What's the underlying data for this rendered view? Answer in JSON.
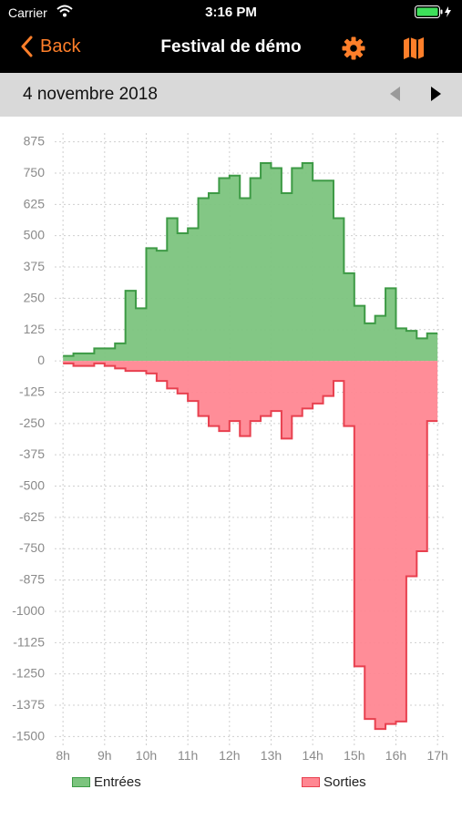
{
  "status": {
    "carrier": "Carrier",
    "time": "3:16 PM"
  },
  "nav": {
    "back_label": "Back",
    "title": "Festival de démo"
  },
  "datebar": {
    "date": "4 novembre 2018"
  },
  "colors": {
    "accent": "#ff7f2a",
    "green_fill": "#7cc47e",
    "green_line": "#3d9a45",
    "red_fill": "#ff8792",
    "red_line": "#e8404f"
  },
  "icons": {
    "back": "chevron-left-icon",
    "settings": "gear-icon",
    "map": "map-icon",
    "prev": "triangle-left-icon",
    "next": "triangle-right-icon"
  },
  "chart_data": {
    "type": "area",
    "step": true,
    "x_start": 8,
    "x_step": 0.25,
    "x_ticks": [
      8,
      9,
      10,
      11,
      12,
      13,
      14,
      15,
      16,
      17
    ],
    "x_tick_labels": [
      "8h",
      "9h",
      "10h",
      "11h",
      "12h",
      "13h",
      "14h",
      "15h",
      "16h",
      "17h"
    ],
    "y_ticks": [
      875,
      750,
      625,
      500,
      375,
      250,
      125,
      0,
      -125,
      -250,
      -375,
      -500,
      -625,
      -750,
      -875,
      -1000,
      -1125,
      -1250,
      -1375,
      -1500
    ],
    "y_tick_labels": [
      "875",
      "750",
      "625",
      "500",
      "375",
      "250",
      "125",
      "0",
      "-125",
      "-250",
      "-375",
      "-500",
      "-625",
      "-750",
      "-875",
      "-1000",
      "-1125",
      "-1250",
      "-1375",
      "-1500"
    ],
    "ylim": [
      -1535,
      910
    ],
    "xlim": [
      7.8,
      17.15
    ],
    "grid": true,
    "legend_position": "bottom",
    "series": [
      {
        "name": "Entrées",
        "values": [
          20,
          30,
          30,
          50,
          50,
          70,
          280,
          210,
          450,
          440,
          570,
          510,
          530,
          650,
          670,
          730,
          740,
          650,
          730,
          790,
          770,
          670,
          770,
          790,
          720,
          720,
          570,
          350,
          220,
          150,
          180,
          290,
          130,
          120,
          90,
          110
        ]
      },
      {
        "name": "Sorties",
        "values": [
          -10,
          -20,
          -20,
          -10,
          -20,
          -30,
          -40,
          -40,
          -50,
          -80,
          -110,
          -130,
          -160,
          -220,
          -260,
          -280,
          -240,
          -300,
          -240,
          -220,
          -200,
          -310,
          -220,
          -190,
          -170,
          -140,
          -80,
          -260,
          -1220,
          -1430,
          -1470,
          -1450,
          -1440,
          -860,
          -760,
          -240
        ]
      }
    ]
  }
}
